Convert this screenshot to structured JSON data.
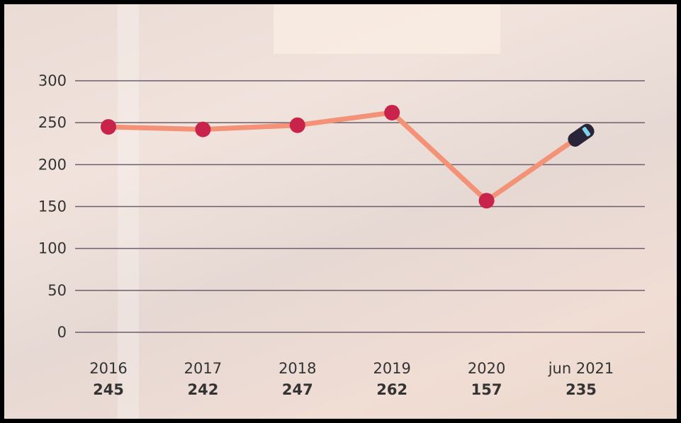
{
  "chart_data": {
    "type": "line",
    "categories": [
      "2016",
      "2017",
      "2018",
      "2019",
      "2020",
      "jun 2021"
    ],
    "values": [
      245,
      242,
      247,
      262,
      157,
      235
    ],
    "color": "#f39277",
    "marker_color": "#c8234b",
    "last_marker_color": "#2a2438",
    "ylim": [
      0,
      300
    ],
    "yticks": [
      0,
      50,
      100,
      150,
      200,
      250,
      300
    ],
    "grid": true
  }
}
